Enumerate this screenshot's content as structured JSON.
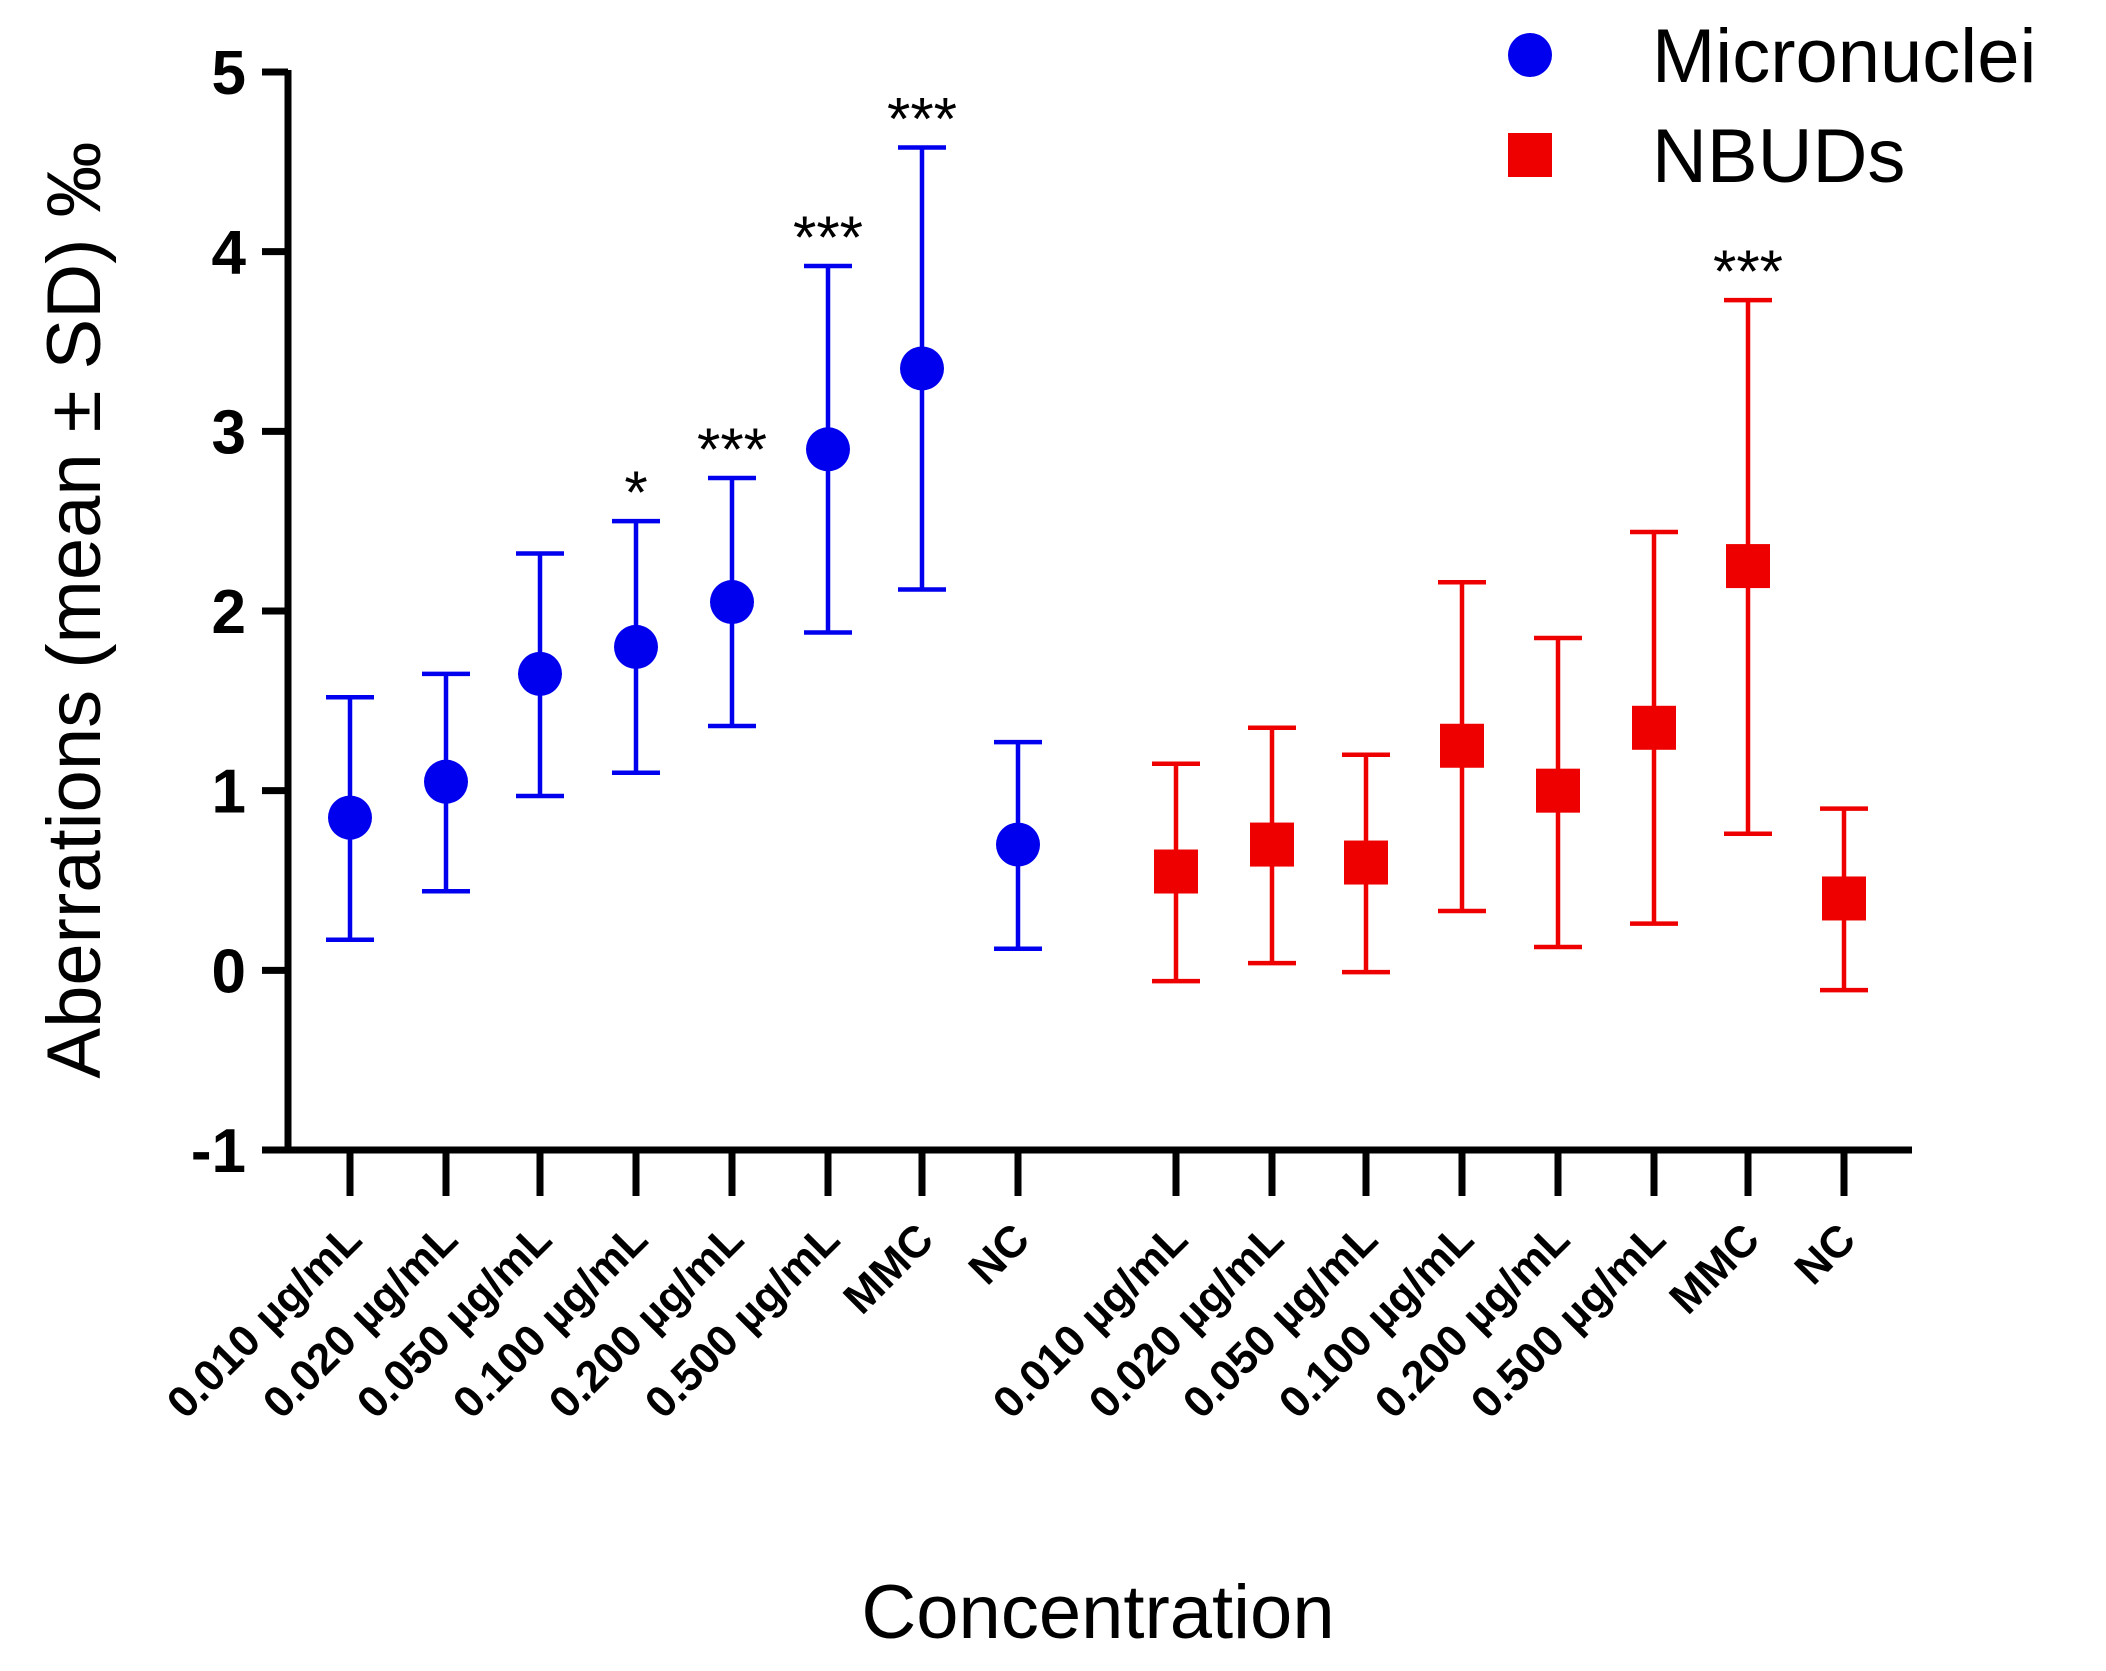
{
  "chart_data": {
    "type": "scatter",
    "title": "",
    "xlabel": "Concentration",
    "ylabel": "Aberrations (mean ± SD) ‰",
    "ylim": [
      -1,
      5
    ],
    "yticks": [
      "-1",
      "0",
      "1",
      "2",
      "3",
      "4",
      "5"
    ],
    "grid": false,
    "legend_position": "top-right",
    "series": [
      {
        "name": "Micronuclei",
        "marker": "circle",
        "color": "#0000ee",
        "categories": [
          "0.010 µg/mL",
          "0.020 µg/mL",
          "0.050 µg/mL",
          "0.100 µg/mL",
          "0.200 µg/mL",
          "0.500 µg/mL",
          "MMC",
          "NC"
        ],
        "values": [
          0.85,
          1.05,
          1.65,
          1.8,
          2.05,
          2.9,
          3.35,
          0.7
        ],
        "err_low": [
          0.17,
          0.44,
          0.97,
          1.1,
          1.36,
          1.88,
          2.12,
          0.12
        ],
        "err_high": [
          1.52,
          1.65,
          2.32,
          2.5,
          2.74,
          3.92,
          4.58,
          1.27
        ],
        "annotations": [
          "",
          "",
          "",
          "*",
          "***",
          "***",
          "***",
          ""
        ]
      },
      {
        "name": "NBUDs",
        "marker": "square",
        "color": "#ee0000",
        "categories": [
          "0.010 µg/mL",
          "0.020 µg/mL",
          "0.050 µg/mL",
          "0.100 µg/mL",
          "0.200 µg/mL",
          "0.500 µg/mL",
          "MMC",
          "NC"
        ],
        "values": [
          0.55,
          0.7,
          0.6,
          1.25,
          1.0,
          1.35,
          2.25,
          0.4
        ],
        "err_low": [
          -0.06,
          0.04,
          -0.01,
          0.33,
          0.13,
          0.26,
          0.76,
          -0.11
        ],
        "err_high": [
          1.15,
          1.35,
          1.2,
          2.16,
          1.85,
          2.44,
          3.73,
          0.9
        ],
        "annotations": [
          "",
          "",
          "",
          "",
          "",
          "",
          "***",
          ""
        ]
      }
    ]
  }
}
